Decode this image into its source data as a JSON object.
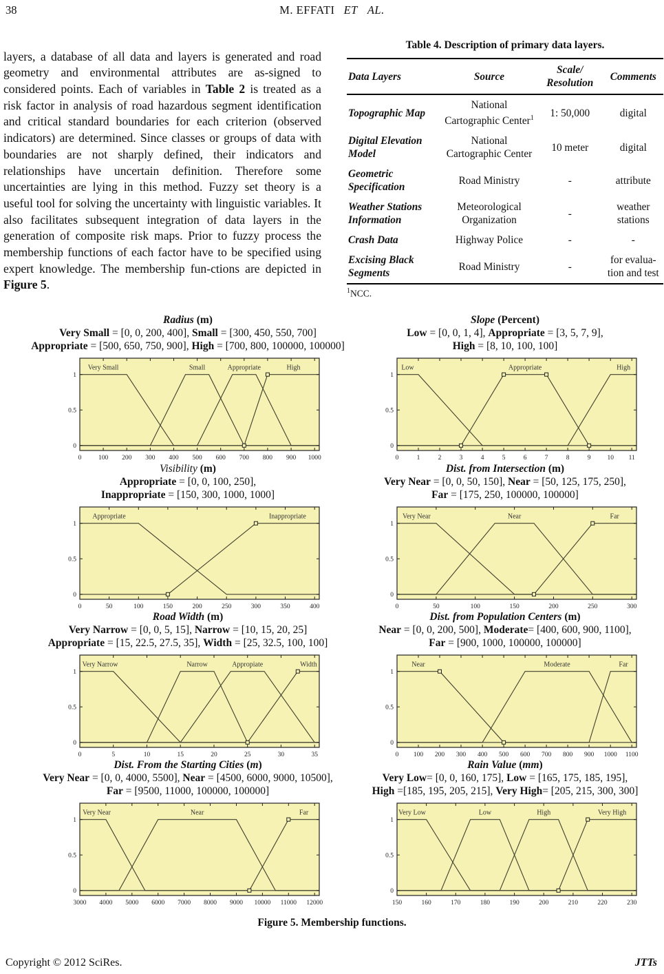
{
  "colors": {
    "plot_bg": "#F6F2B3",
    "plot_line": "#40402F",
    "axis": "#222222",
    "text": "#111111"
  },
  "header": {
    "page_number": "38",
    "running_title": "M. EFFATI",
    "running_title_italic": "ET AL."
  },
  "body": {
    "paragraph": [
      [
        "layers, a database of all data and layers is generated and road geometry and environmental attributes are as-signed to considered points. Each of variables in ",
        ""
      ],
      [
        "Table 2",
        "b"
      ],
      [
        " is treated as a risk factor in analysis of road hazardous segment identification and critical standard boundaries for each criterion (observed indicators) are determined. Since classes or groups of data with boundaries are not sharply defined, their indicators and relationships have uncertain definition. Therefore some uncertainties are lying in this method. Fuzzy set theory is a useful tool for solving the uncertainty with linguistic variables. It also facilitates subsequent integration of data layers in the generation of composite risk maps. Prior to fuzzy process the membership functions of each factor have to be specified using expert knowledge. The membership fun-ctions are depicted in ",
        ""
      ],
      [
        "Figure 5",
        "b"
      ],
      [
        ".",
        ""
      ]
    ]
  },
  "table": {
    "title": "Table 4. Description of primary data layers.",
    "headers": [
      [
        "Data Layers"
      ],
      [
        "Source"
      ],
      [
        "Scale/",
        "Resolution"
      ],
      [
        "Comments"
      ]
    ],
    "rows": [
      {
        "layer": "Topographic Map",
        "source": "National Cartographic Center",
        "source_sup": "1",
        "scale": "1: 50,000",
        "comments": "digital"
      },
      {
        "layer": "Digital Elevation Model",
        "source": "National Cartographic Center",
        "source_sup": "",
        "scale": "10 meter",
        "comments": "digital"
      },
      {
        "layer": "Geometric Specification",
        "source": "Road Ministry",
        "source_sup": "",
        "scale": "-",
        "comments": "attribute"
      },
      {
        "layer": "Weather Stations Information",
        "source": "Meteorological Organization",
        "source_sup": "",
        "scale": "-",
        "comments": "weather stations"
      },
      {
        "layer": "Crash Data",
        "source": "Highway Police",
        "source_sup": "",
        "scale": "-",
        "comments": "-"
      },
      {
        "layer": "Excising Black Segments",
        "source": "Road Ministry",
        "source_sup": "",
        "scale": "-",
        "comments": "for evalua-tion and test"
      }
    ],
    "footnote_sup": "1",
    "footnote": "NCC."
  },
  "figure": {
    "caption": "Figure 5. Membership functions.",
    "charts": [
      {
        "id": "radius",
        "type": "line",
        "title": [
          [
            "Radius",
            "bi"
          ],
          [
            " (m)",
            "b"
          ]
        ],
        "params": [
          [
            [
              "Very Small",
              "b"
            ],
            [
              " = [0, 0, 200, 400], ",
              ""
            ],
            [
              "Small",
              "b"
            ],
            [
              " = [300, 450, 550, 700]",
              ""
            ]
          ],
          [
            [
              "Appropriate",
              "b"
            ],
            [
              " = [500, 650, 750, 900], ",
              ""
            ],
            [
              "High",
              "b"
            ],
            [
              " = [700, 800, 100000, 100000]",
              ""
            ]
          ]
        ],
        "xmin": 0,
        "xmax": 1000,
        "xticks": [
          0,
          100,
          200,
          300,
          400,
          500,
          600,
          700,
          800,
          900,
          1000
        ],
        "yticks": [
          0,
          0.5,
          1
        ],
        "mfs": [
          {
            "label": "Very Small",
            "pts": [
              0,
              0,
              200,
              400
            ]
          },
          {
            "label": "Small",
            "pts": [
              300,
              450,
              550,
              700
            ]
          },
          {
            "label": "Appropriate",
            "pts": [
              500,
              650,
              750,
              900
            ]
          },
          {
            "label": "High",
            "pts": [
              700,
              800,
              100000,
              100000
            ]
          }
        ],
        "markers": [
          [
            700,
            0
          ],
          [
            800,
            1
          ]
        ]
      },
      {
        "id": "slope",
        "type": "line",
        "title": [
          [
            "Slope",
            "bi"
          ],
          [
            " (Percent)",
            "b"
          ]
        ],
        "params": [
          [
            [
              "Low",
              "b"
            ],
            [
              " = [0, 0, 1, 4], ",
              ""
            ],
            [
              "Appropriate",
              "b"
            ],
            [
              " = [3, 5, 7, 9],",
              ""
            ]
          ],
          [
            [
              "High",
              "b"
            ],
            [
              " = [8, 10, 100, 100]",
              ""
            ]
          ]
        ],
        "xmin": 0,
        "xmax": 11,
        "xticks": [
          0,
          1,
          2,
          3,
          4,
          5,
          6,
          7,
          8,
          9,
          10,
          11
        ],
        "yticks": [
          0,
          0.5,
          1
        ],
        "mfs": [
          {
            "label": "Low",
            "pts": [
              0,
              0,
              1,
              4
            ]
          },
          {
            "label": "Appropriate",
            "pts": [
              3,
              5,
              7,
              9
            ]
          },
          {
            "label": "High",
            "pts": [
              8,
              10,
              100,
              100
            ]
          }
        ],
        "markers": [
          [
            3,
            0
          ],
          [
            5,
            1
          ],
          [
            7,
            1
          ],
          [
            9,
            0
          ]
        ]
      },
      {
        "id": "visibility",
        "type": "line",
        "title": [
          [
            "Visibility",
            "i"
          ],
          [
            " (m)",
            "b"
          ]
        ],
        "params": [
          [
            [
              "Appropriate",
              "b"
            ],
            [
              " = [0, 0, 100, 250],",
              ""
            ]
          ],
          [
            [
              "Inappropriate",
              "b"
            ],
            [
              " = [150, 300, 1000, 1000]",
              ""
            ]
          ]
        ],
        "xmin": 0,
        "xmax": 400,
        "xticks": [
          0,
          50,
          100,
          150,
          200,
          250,
          300,
          350,
          400
        ],
        "yticks": [
          0,
          0.5,
          1
        ],
        "mfs": [
          {
            "label": "Appropriate",
            "pts": [
              0,
              0,
              100,
              250
            ]
          },
          {
            "label": "Inappropriate",
            "pts": [
              150,
              300,
              1000,
              1000
            ]
          }
        ],
        "markers": [
          [
            150,
            0
          ],
          [
            300,
            1
          ]
        ]
      },
      {
        "id": "dist-intersection",
        "type": "line",
        "title": [
          [
            "Dist. from Intersection",
            "bi"
          ],
          [
            " (m)",
            "b"
          ]
        ],
        "params": [
          [
            [
              "Very Near",
              "b"
            ],
            [
              " = [0, 0, 50, 150], ",
              ""
            ],
            [
              "Near",
              "b"
            ],
            [
              " = [50, 125, 175, 250],",
              ""
            ]
          ],
          [
            [
              "Far",
              "b"
            ],
            [
              " = [175, 250, 100000, 100000]",
              ""
            ]
          ]
        ],
        "xmin": 0,
        "xmax": 300,
        "xticks": [
          0,
          50,
          100,
          150,
          200,
          250,
          300
        ],
        "yticks": [
          0,
          0.5,
          1
        ],
        "mfs": [
          {
            "label": "Very Near",
            "pts": [
              0,
              0,
              50,
              150
            ]
          },
          {
            "label": "Near",
            "pts": [
              50,
              125,
              175,
              250
            ]
          },
          {
            "label": "Far",
            "pts": [
              175,
              250,
              100000,
              100000
            ]
          }
        ],
        "markers": [
          [
            175,
            0
          ],
          [
            250,
            1
          ]
        ]
      },
      {
        "id": "road-width",
        "type": "line",
        "title": [
          [
            "Road Width",
            "bi"
          ],
          [
            " (m)",
            "b"
          ]
        ],
        "params": [
          [
            [
              "Very Narrow",
              "b"
            ],
            [
              " = [0, 0, 5, 15], ",
              ""
            ],
            [
              "Narrow",
              "b"
            ],
            [
              " = [10, 15, 20, 25]",
              ""
            ]
          ],
          [
            [
              "Appropriate",
              "b"
            ],
            [
              " = [15, 22.5, 27.5, 35], ",
              ""
            ],
            [
              "Width",
              "b"
            ],
            [
              " = [25, 32.5, 100, 100]",
              ""
            ]
          ]
        ],
        "xmin": 0,
        "xmax": 35,
        "xticks": [
          0,
          5,
          10,
          15,
          20,
          25,
          30,
          35
        ],
        "yticks": [
          0,
          0.5,
          1
        ],
        "mfs": [
          {
            "label": "Very Narrow",
            "pts": [
              0,
              0,
              5,
              15
            ]
          },
          {
            "label": "Narrow",
            "pts": [
              10,
              15,
              20,
              25
            ]
          },
          {
            "label": "Appropiate",
            "pts": [
              15,
              22.5,
              27.5,
              35
            ]
          },
          {
            "label": "Width",
            "pts": [
              25,
              32.5,
              100,
              100
            ]
          }
        ],
        "markers": [
          [
            25,
            0
          ],
          [
            32.5,
            1
          ]
        ]
      },
      {
        "id": "dist-population",
        "type": "line",
        "title": [
          [
            "Dist. from Population Centers",
            "bi"
          ],
          [
            " (m)",
            "b"
          ]
        ],
        "params": [
          [
            [
              "Near",
              "b"
            ],
            [
              " = [0, 0, 200, 500], ",
              ""
            ],
            [
              "Moderate",
              "b"
            ],
            [
              "= [400, 600, 900, 1100],",
              ""
            ]
          ],
          [
            [
              "Far",
              "b"
            ],
            [
              " = [900, 1000, 100000, 100000]",
              ""
            ]
          ]
        ],
        "xmin": 0,
        "xmax": 1100,
        "xticks": [
          0,
          100,
          200,
          300,
          400,
          500,
          600,
          700,
          800,
          900,
          1000,
          1100
        ],
        "yticks": [
          0,
          0.5,
          1
        ],
        "mfs": [
          {
            "label": "Near",
            "pts": [
              0,
              0,
              200,
              500
            ]
          },
          {
            "label": "Moderate",
            "pts": [
              400,
              600,
              900,
              1100
            ]
          },
          {
            "label": "Far",
            "pts": [
              900,
              1000,
              100000,
              100000
            ]
          }
        ],
        "markers": [
          [
            200,
            1
          ],
          [
            500,
            0
          ]
        ]
      },
      {
        "id": "starting-cities",
        "type": "line",
        "title": [
          [
            "Dist. From the Starting Cities",
            "bi"
          ],
          [
            " (",
            "b"
          ],
          [
            "m",
            "bi"
          ],
          [
            ")",
            "b"
          ]
        ],
        "params": [
          [
            [
              "Very Near",
              "b"
            ],
            [
              " = [0, 0, 4000, 5500], ",
              ""
            ],
            [
              "Near",
              "b"
            ],
            [
              " = [4500, 6000, 9000, 10500],",
              ""
            ]
          ],
          [
            [
              "Far",
              "b"
            ],
            [
              " = [9500, 11000, 100000, 100000]",
              ""
            ]
          ]
        ],
        "xmin": 3000,
        "xmax": 12000,
        "xticks": [
          3000,
          4000,
          5000,
          6000,
          7000,
          8000,
          9000,
          10000,
          11000,
          12000
        ],
        "yticks": [
          0,
          0.5,
          1
        ],
        "mfs": [
          {
            "label": "Very Near",
            "pts": [
              0,
              0,
              4000,
              5500
            ]
          },
          {
            "label": "Near",
            "pts": [
              4500,
              6000,
              9000,
              10500
            ]
          },
          {
            "label": "Far",
            "pts": [
              9500,
              11000,
              100000,
              100000
            ]
          }
        ],
        "markers": [
          [
            9500,
            0
          ],
          [
            11000,
            1
          ]
        ]
      },
      {
        "id": "rain-value",
        "type": "line",
        "title": [
          [
            "Rain Value",
            "bi"
          ],
          [
            " (",
            "b"
          ],
          [
            "mm",
            "bi"
          ],
          [
            ")",
            "b"
          ]
        ],
        "params": [
          [
            [
              "Very Low",
              "b"
            ],
            [
              "= [0, 0, 160, 175], ",
              ""
            ],
            [
              "Low",
              "b"
            ],
            [
              " = [165, 175, 185, 195],",
              ""
            ]
          ],
          [
            [
              "High",
              "b"
            ],
            [
              " =[185, 195, 205, 215], ",
              ""
            ],
            [
              "Very High",
              "b"
            ],
            [
              "= [205, 215, 300, 300]",
              ""
            ]
          ]
        ],
        "xmin": 150,
        "xmax": 230,
        "xticks": [
          150,
          160,
          170,
          180,
          190,
          200,
          210,
          220,
          230
        ],
        "yticks": [
          0,
          0.5,
          1
        ],
        "mfs": [
          {
            "label": "Very Low",
            "pts": [
              0,
              0,
              160,
              175
            ]
          },
          {
            "label": "Low",
            "pts": [
              165,
              175,
              185,
              195
            ]
          },
          {
            "label": "High",
            "pts": [
              185,
              195,
              205,
              215
            ]
          },
          {
            "label": "Very High",
            "pts": [
              205,
              215,
              300,
              300
            ]
          }
        ],
        "markers": [
          [
            205,
            0
          ],
          [
            215,
            1
          ]
        ]
      }
    ]
  },
  "footer": {
    "copyright": "Copyright © 2012 SciRes.",
    "journal": "JTTs"
  }
}
